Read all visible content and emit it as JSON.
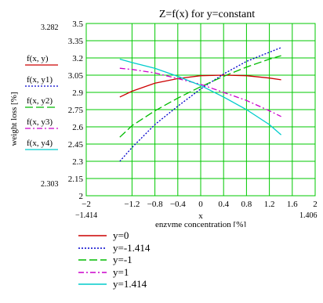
{
  "chart_data": {
    "type": "line",
    "title": "Z=f(x) for y=constant",
    "xlabel_var": "x",
    "xlabel": "enzyme concentration [%]",
    "ylabel": "weight loss [%]",
    "xlim": [
      -2,
      2
    ],
    "ylim": [
      2,
      3.5
    ],
    "grid": true,
    "x_ticks": [
      "−2",
      "−1.2",
      "−0.8",
      "−0.4",
      "0",
      "0.4",
      "0.8",
      "1.2",
      "1.6",
      "2"
    ],
    "x_tick_values": [
      -2,
      -1.2,
      -0.8,
      -0.4,
      0,
      0.4,
      0.8,
      1.2,
      1.6,
      2
    ],
    "y_ticks": [
      "2",
      "2.15",
      "2.3",
      "2.45",
      "2.6",
      "2.75",
      "2.9",
      "3.05",
      "3.2",
      "3.35",
      "3.5"
    ],
    "y_tick_values": [
      2,
      2.15,
      2.3,
      2.45,
      2.6,
      2.75,
      2.9,
      3.05,
      3.2,
      3.35,
      3.5
    ],
    "x_range_labels": {
      "min": "−1.414",
      "max": "1.406"
    },
    "y_range_labels": {
      "min": "2.303",
      "max": "3.282"
    },
    "series_labels": [
      "f(x, y)",
      "f(x, y1)",
      "f(x, y2)",
      "f(x, y3)",
      "f(x, y4)"
    ],
    "series": [
      {
        "name": "y=0",
        "color": "#cc0000",
        "dash": "solid",
        "x": [
          -1.414,
          -1.2,
          -0.8,
          -0.4,
          0,
          0.4,
          0.8,
          1.2,
          1.406
        ],
        "values": [
          2.86,
          2.91,
          2.98,
          3.02,
          3.045,
          3.05,
          3.045,
          3.025,
          3.01
        ]
      },
      {
        "name": "y=-1.414",
        "color": "#0000cc",
        "dash": "dotted",
        "x": [
          -1.414,
          -1.2,
          -0.8,
          -0.4,
          0,
          0.4,
          0.8,
          1.2,
          1.406
        ],
        "values": [
          2.3,
          2.42,
          2.62,
          2.78,
          2.93,
          3.06,
          3.17,
          3.25,
          3.29
        ]
      },
      {
        "name": "y=-1",
        "color": "#00bb00",
        "dash": "longdash",
        "x": [
          -1.414,
          -1.2,
          -0.8,
          -0.4,
          0,
          0.4,
          0.8,
          1.2,
          1.406
        ],
        "values": [
          2.51,
          2.61,
          2.74,
          2.85,
          2.95,
          3.04,
          3.12,
          3.19,
          3.22
        ]
      },
      {
        "name": "y=1",
        "color": "#cc00cc",
        "dash": "dashdot",
        "x": [
          -1.414,
          -1.2,
          -0.8,
          -0.4,
          0,
          0.4,
          0.8,
          1.2,
          1.406
        ],
        "values": [
          3.11,
          3.1,
          3.07,
          3.02,
          2.97,
          2.9,
          2.83,
          2.74,
          2.69
        ]
      },
      {
        "name": "y=1.414",
        "color": "#00cccc",
        "dash": "solid",
        "x": [
          -1.414,
          -1.2,
          -0.8,
          -0.4,
          0,
          0.4,
          0.8,
          1.2,
          1.406
        ],
        "values": [
          3.19,
          3.16,
          3.11,
          3.04,
          2.96,
          2.86,
          2.75,
          2.62,
          2.53
        ]
      }
    ]
  }
}
